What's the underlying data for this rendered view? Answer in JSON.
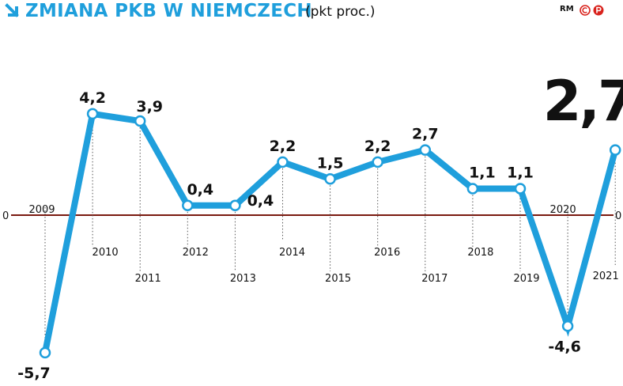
{
  "header": {
    "title": "ZMIANA PKB W NIEMCZECH",
    "unit": "(pkt proc.)",
    "source": "RM"
  },
  "colors": {
    "accent": "#1f9fdc",
    "zero_line": "#7a1a10",
    "text": "#111111"
  },
  "chart_data": {
    "type": "line",
    "title": "ZMIANA PKB W NIEMCZECH",
    "unit": "(pkt proc.)",
    "categories": [
      "2009",
      "2010",
      "2011",
      "2012",
      "2013",
      "2014",
      "2015",
      "2016",
      "2017",
      "2018",
      "2019",
      "2020",
      "2021"
    ],
    "values": [
      -5.7,
      4.2,
      3.9,
      0.4,
      0.4,
      2.2,
      1.5,
      2.2,
      2.7,
      1.1,
      1.1,
      -4.6,
      2.7
    ],
    "value_labels": [
      "-5,7",
      "4,2",
      "3,9",
      "0,4",
      "0,4",
      "2,2",
      "1,5",
      "2,2",
      "2,7",
      "1,1",
      "1,1",
      "-4,6",
      "2,7"
    ],
    "highlight_label": "2,7",
    "zero_axis_label": "0",
    "ylim": [
      -6,
      5
    ],
    "grid": false,
    "legend": "none"
  }
}
